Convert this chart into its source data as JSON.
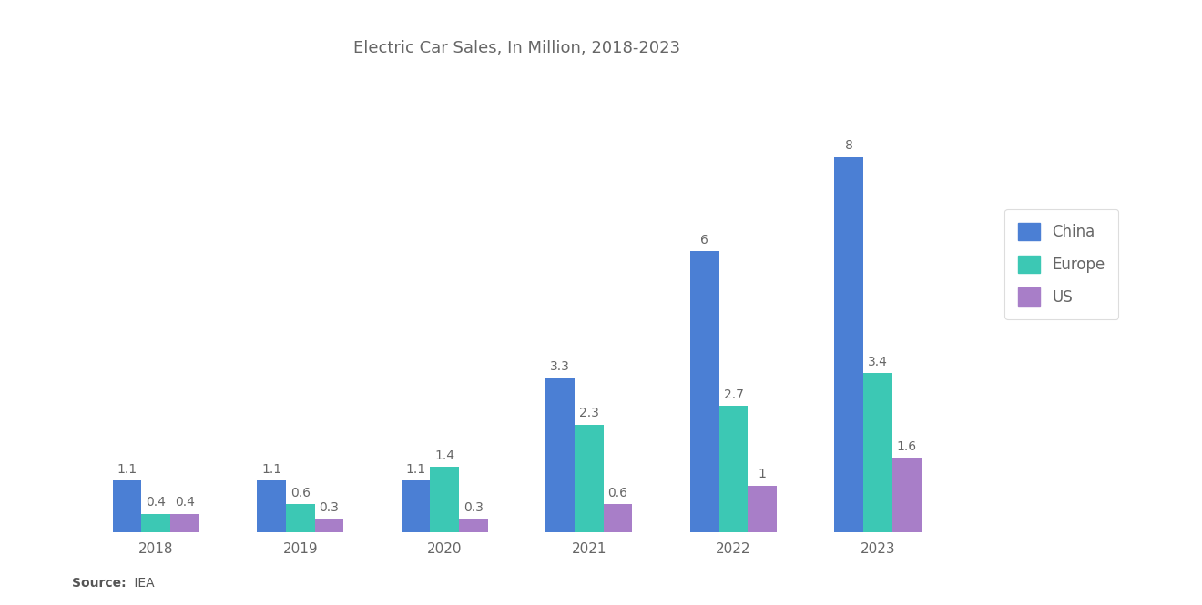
{
  "title": "Electric Car Sales, In Million, 2018-2023",
  "source_bold": "Source:",
  "source_rest": " IEA",
  "years": [
    "2018",
    "2019",
    "2020",
    "2021",
    "2022",
    "2023"
  ],
  "china": [
    1.1,
    1.1,
    1.1,
    3.3,
    6.0,
    8.0
  ],
  "europe": [
    0.4,
    0.6,
    1.4,
    2.3,
    2.7,
    3.4
  ],
  "us": [
    0.4,
    0.3,
    0.3,
    0.6,
    1.0,
    1.6
  ],
  "china_labels": [
    "1.1",
    "1.1",
    "1.1",
    "3.3",
    "6",
    "8"
  ],
  "europe_labels": [
    "0.4",
    "0.6",
    "1.4",
    "2.3",
    "2.7",
    "3.4"
  ],
  "us_labels": [
    "0.4",
    "0.3",
    "0.3",
    "0.6",
    "1",
    "1.6"
  ],
  "color_china": "#4B7FD4",
  "color_europe": "#3CC8B4",
  "color_us": "#A87EC8",
  "background_color": "#FFFFFF",
  "title_fontsize": 13,
  "label_fontsize": 10,
  "tick_fontsize": 11,
  "legend_labels": [
    "China",
    "Europe",
    "US"
  ],
  "bar_width": 0.2,
  "ylim": [
    0,
    9.8
  ],
  "label_color": "#666666"
}
